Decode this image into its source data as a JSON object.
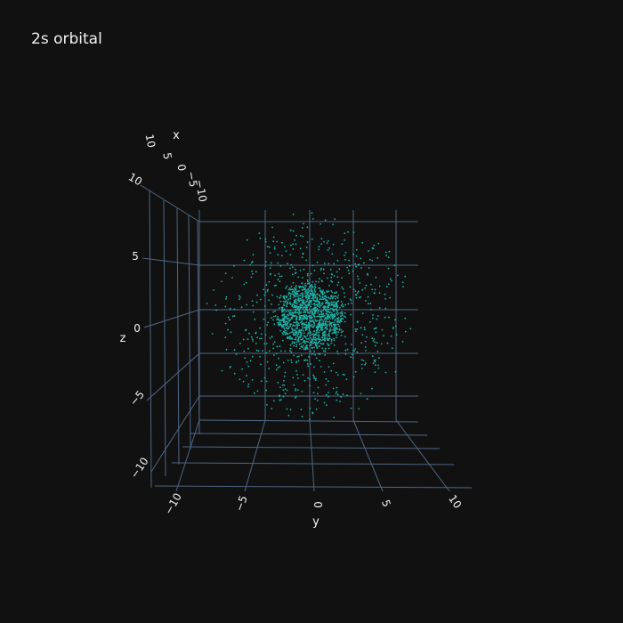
{
  "chart_data": {
    "type": "scatter",
    "dimensions": "3d",
    "title": "2s orbital",
    "axes": {
      "x": {
        "label": "x",
        "range": [
          -10,
          10
        ],
        "ticks": [
          "10",
          "5",
          "0",
          "−5",
          "−10"
        ]
      },
      "y": {
        "label": "y",
        "range": [
          -10,
          10
        ],
        "ticks": [
          "−10",
          "−5",
          "0",
          "5",
          "10"
        ]
      },
      "z": {
        "label": "z",
        "range": [
          -10,
          10
        ],
        "ticks": [
          "10",
          "5",
          "0",
          "−5",
          "−10"
        ]
      }
    },
    "grid": true,
    "legend": "none",
    "series": [
      {
        "distribution": "hydrogen 2s probability density (inner dense core radius ~4, sparse outer shell radius ~5–12)",
        "sample_points": 1800,
        "inner_radius": 4,
        "outer_shell": [
          5,
          12
        ]
      }
    ],
    "colors": {
      "background": "#111111",
      "grid": "#506784",
      "axis_text": "#f2f2f2",
      "marker": "#1bb3a8"
    }
  }
}
